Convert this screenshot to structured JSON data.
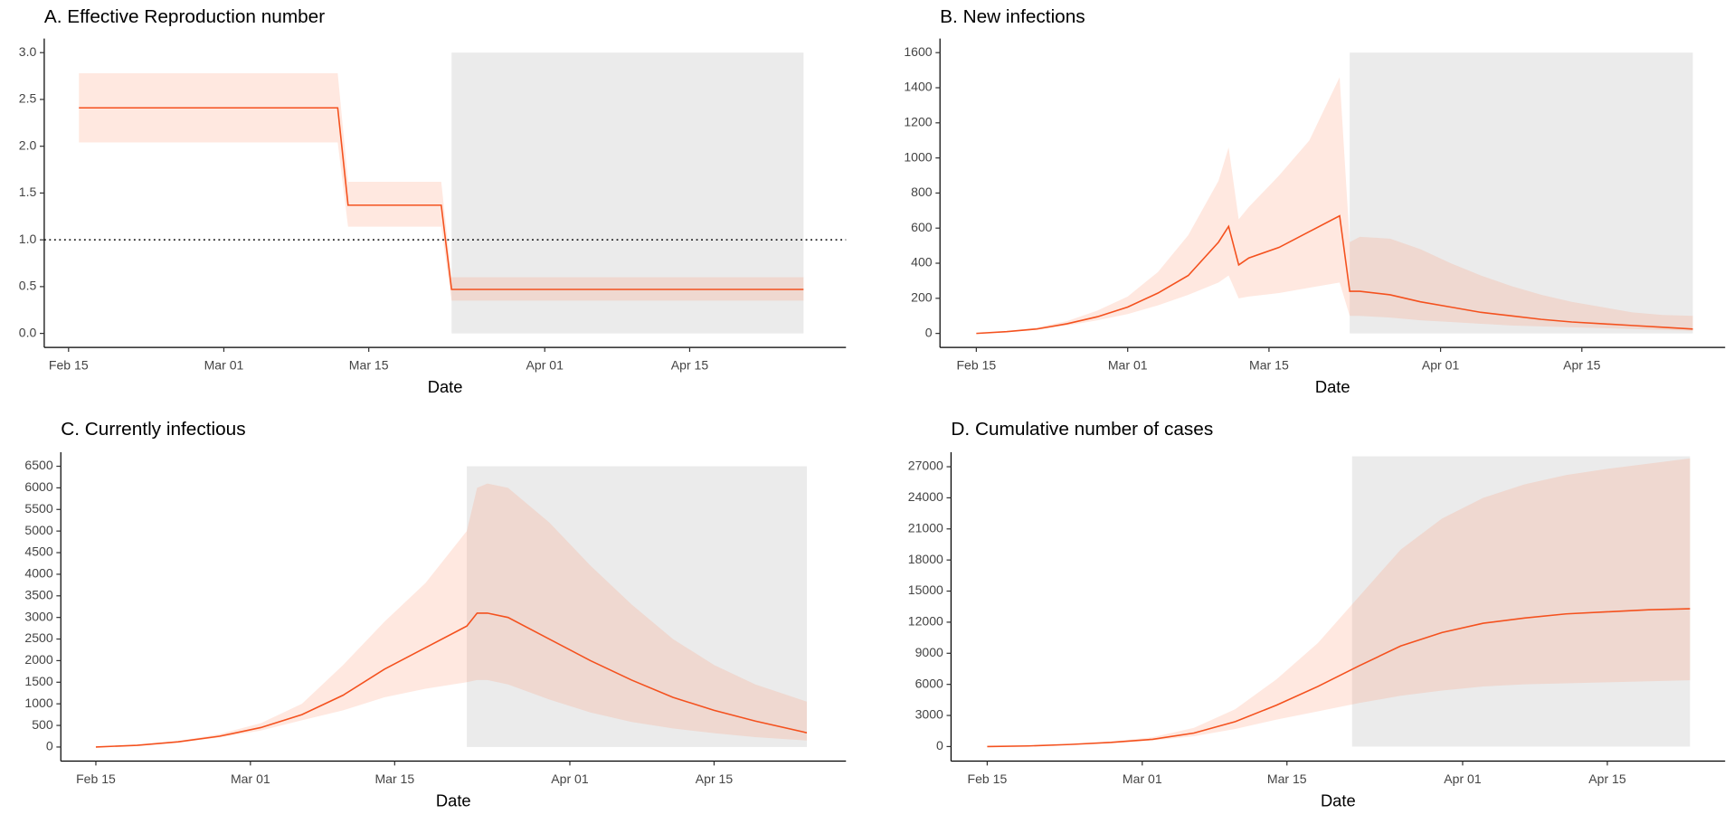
{
  "chart_data": [
    {
      "type": "line_band",
      "title": "A. Effective Reproduction number",
      "xlabel": "Date",
      "x": [
        1,
        26,
        27,
        36,
        37,
        71
      ],
      "median": [
        2.41,
        2.41,
        1.37,
        1.37,
        0.47,
        0.47
      ],
      "lower": [
        2.04,
        2.04,
        1.14,
        1.14,
        0.35,
        0.35
      ],
      "upper": [
        2.78,
        2.78,
        1.62,
        1.62,
        0.6,
        0.6
      ],
      "color": "#f4511e",
      "band_color": "#ff8a65",
      "shade_color": "#ebebeb",
      "shaded_region": {
        "x": [
          37,
          71
        ],
        "y": [
          0,
          3
        ]
      },
      "hline": 1,
      "xlim": [
        -2.35,
        75.1
      ],
      "ylim": [
        -0.15,
        3.15
      ],
      "xticks": [
        {
          "value": 0,
          "label": "Feb 15"
        },
        {
          "value": 15,
          "label": "Mar 01"
        },
        {
          "value": 29,
          "label": "Mar 15"
        },
        {
          "value": 46,
          "label": "Apr 01"
        },
        {
          "value": 60,
          "label": "Apr 15"
        }
      ],
      "yticks": [
        {
          "value": 0,
          "label": "0.0"
        },
        0.5,
        {
          "value": 1,
          "label": "1.0"
        },
        1.5,
        {
          "value": 2,
          "label": "2.0"
        },
        2.5,
        {
          "value": 3,
          "label": "3.0"
        }
      ]
    },
    {
      "type": "line_band",
      "title": "B. New infections",
      "xlabel": "Date",
      "x": [
        0,
        3,
        6,
        9,
        12,
        15,
        18,
        21,
        24,
        25,
        26,
        27,
        30,
        33,
        36,
        37,
        38,
        41,
        44,
        47,
        50,
        53,
        56,
        59,
        62,
        65,
        68,
        71
      ],
      "median": [
        0,
        10,
        25,
        55,
        95,
        150,
        230,
        330,
        520,
        610,
        390,
        430,
        490,
        580,
        670,
        240,
        240,
        220,
        180,
        150,
        120,
        100,
        80,
        65,
        55,
        45,
        35,
        25
      ],
      "lower": [
        0,
        8,
        20,
        45,
        75,
        110,
        160,
        220,
        290,
        330,
        200,
        210,
        230,
        260,
        290,
        100,
        100,
        90,
        75,
        65,
        55,
        45,
        40,
        35,
        30,
        25,
        20,
        15
      ],
      "upper": [
        0,
        12,
        35,
        70,
        130,
        210,
        350,
        560,
        870,
        1060,
        650,
        720,
        900,
        1100,
        1460,
        520,
        550,
        540,
        480,
        400,
        330,
        270,
        220,
        180,
        150,
        120,
        105,
        100
      ],
      "color": "#f4511e",
      "band_color": "#ff8a65",
      "shade_color": "#ebebeb",
      "shaded_region": {
        "x": [
          37,
          71
        ],
        "y": [
          0,
          1600
        ]
      },
      "xlim": [
        -3.6,
        74.2
      ],
      "ylim": [
        -80,
        1680
      ],
      "xticks": [
        {
          "value": 0,
          "label": "Feb 15"
        },
        {
          "value": 15,
          "label": "Mar 01"
        },
        {
          "value": 29,
          "label": "Mar 15"
        },
        {
          "value": 46,
          "label": "Apr 01"
        },
        {
          "value": 60,
          "label": "Apr 15"
        }
      ],
      "yticks": [
        0,
        200,
        400,
        600,
        800,
        1000,
        1200,
        1400,
        1600
      ]
    },
    {
      "type": "line_band",
      "title": "C. Currently infectious",
      "xlabel": "Date",
      "x": [
        0,
        4,
        8,
        12,
        16,
        20,
        24,
        28,
        32,
        36,
        37,
        38,
        40,
        44,
        48,
        52,
        56,
        60,
        64,
        69
      ],
      "median": [
        0,
        40,
        120,
        250,
        450,
        750,
        1200,
        1800,
        2300,
        2800,
        3100,
        3100,
        3000,
        2500,
        2000,
        1550,
        1150,
        850,
        600,
        330
      ],
      "lower": [
        0,
        35,
        100,
        220,
        380,
        620,
        850,
        1150,
        1350,
        1500,
        1550,
        1550,
        1450,
        1100,
        800,
        580,
        430,
        320,
        230,
        150
      ],
      "upper": [
        0,
        50,
        140,
        300,
        550,
        1000,
        1900,
        2900,
        3800,
        5000,
        6000,
        6100,
        6000,
        5200,
        4200,
        3300,
        2500,
        1900,
        1450,
        1050
      ],
      "color": "#f4511e",
      "band_color": "#ff8a65",
      "shade_color": "#ebebeb",
      "shaded_region": {
        "x": [
          36,
          69
        ],
        "y": [
          0,
          6500
        ]
      },
      "xlim": [
        -3.4,
        72.8
      ],
      "ylim": [
        -325,
        6825
      ],
      "xticks": [
        {
          "value": 0,
          "label": "Feb 15"
        },
        {
          "value": 15,
          "label": "Mar 01"
        },
        {
          "value": 29,
          "label": "Mar 15"
        },
        {
          "value": 46,
          "label": "Apr 01"
        },
        {
          "value": 60,
          "label": "Apr 15"
        }
      ],
      "yticks": [
        0,
        500,
        1000,
        1500,
        2000,
        2500,
        3000,
        3500,
        4000,
        4500,
        5000,
        5500,
        6000,
        6500
      ]
    },
    {
      "type": "line_band",
      "title": "D. Cumulative number of cases",
      "xlabel": "Date",
      "x": [
        0,
        4,
        8,
        12,
        16,
        20,
        24,
        28,
        32,
        36,
        40,
        44,
        48,
        52,
        56,
        60,
        64,
        68
      ],
      "median": [
        0,
        60,
        200,
        400,
        700,
        1300,
        2400,
        4000,
        5800,
        7800,
        9700,
        11000,
        11900,
        12400,
        12800,
        13000,
        13200,
        13300
      ],
      "lower": [
        0,
        50,
        170,
        330,
        580,
        1000,
        1700,
        2600,
        3400,
        4200,
        4900,
        5400,
        5800,
        6000,
        6100,
        6200,
        6300,
        6400
      ],
      "upper": [
        0,
        70,
        230,
        480,
        900,
        1800,
        3600,
        6500,
        10000,
        14500,
        19000,
        22000,
        24000,
        25300,
        26200,
        26800,
        27300,
        27800
      ],
      "color": "#f4511e",
      "band_color": "#ff8a65",
      "shade_color": "#ebebeb",
      "shaded_region": {
        "x": [
          35.3,
          68
        ],
        "y": [
          0,
          28000
        ]
      },
      "xlim": [
        -3.5,
        71.4
      ],
      "ylim": [
        -1400,
        28400
      ],
      "xticks": [
        {
          "value": 0,
          "label": "Feb 15"
        },
        {
          "value": 15,
          "label": "Mar 01"
        },
        {
          "value": 29,
          "label": "Mar 15"
        },
        {
          "value": 46,
          "label": "Apr 01"
        },
        {
          "value": 60,
          "label": "Apr 15"
        }
      ],
      "yticks": [
        0,
        3000,
        6000,
        9000,
        12000,
        15000,
        18000,
        21000,
        24000,
        27000
      ]
    }
  ]
}
